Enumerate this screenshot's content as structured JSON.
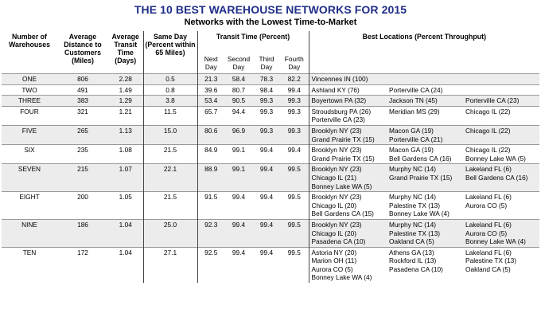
{
  "title": "THE 10 BEST WAREHOUSE NETWORKS FOR 2015",
  "subtitle": "Networks with the Lowest Time-to-Market",
  "headers": {
    "warehouses": "Number of Warehouses",
    "distance": "Average Distance to Customers (Miles)",
    "transit": "Average Transit Time (Days)",
    "sameday": "Same Day (Percent within 65 Miles)",
    "transit_pct": "Transit Time (Percent)",
    "best_locations": "Best Locations (Percent Throughput)",
    "next_day": "Next Day",
    "second_day": "Second Day",
    "third_day": "Third Day",
    "fourth_day": "Fourth Day"
  },
  "rows": [
    {
      "n": "ONE",
      "dist": "806",
      "transit": "2.28",
      "same": "0.5",
      "d1": "21.3",
      "d2": "58.4",
      "d3": "78.3",
      "d4": "82.2",
      "loc1": [
        "Vincennes IN (100)"
      ],
      "loc2": [],
      "loc3": []
    },
    {
      "n": "TWO",
      "dist": "491",
      "transit": "1.49",
      "same": "0.8",
      "d1": "39.6",
      "d2": "80.7",
      "d3": "98.4",
      "d4": "99.4",
      "loc1": [
        "Ashland KY (76)"
      ],
      "loc2": [
        "Porterville CA (24)"
      ],
      "loc3": []
    },
    {
      "n": "THREE",
      "dist": "383",
      "transit": "1.29",
      "same": "3.8",
      "d1": "53.4",
      "d2": "90.5",
      "d3": "99.3",
      "d4": "99.3",
      "loc1": [
        "Boyertown PA (32)"
      ],
      "loc2": [
        "Jackson TN (45)"
      ],
      "loc3": [
        "Porterville CA (23)"
      ]
    },
    {
      "n": "FOUR",
      "dist": "321",
      "transit": "1.21",
      "same": "11.5",
      "d1": "65.7",
      "d2": "94.4",
      "d3": "99.3",
      "d4": "99.3",
      "loc1": [
        "Stroudsburg PA (26)",
        "Porterville CA (23)"
      ],
      "loc2": [
        "Meridian MS (29)"
      ],
      "loc3": [
        "Chicago IL (22)"
      ]
    },
    {
      "n": "FIVE",
      "dist": "265",
      "transit": "1.13",
      "same": "15.0",
      "d1": "80.6",
      "d2": "96.9",
      "d3": "99.3",
      "d4": "99.3",
      "loc1": [
        "Brooklyn NY (23)",
        "Grand Prairie TX (15)"
      ],
      "loc2": [
        "Macon GA (19)",
        "Porterville CA (21)"
      ],
      "loc3": [
        "Chicago IL (22)"
      ]
    },
    {
      "n": "SIX",
      "dist": "235",
      "transit": "1.08",
      "same": "21.5",
      "d1": "84.9",
      "d2": "99.1",
      "d3": "99.4",
      "d4": "99.4",
      "loc1": [
        "Brooklyn NY (23)",
        "Grand Prairie TX (15)"
      ],
      "loc2": [
        "Macon GA (19)",
        "Bell Gardens CA (16)"
      ],
      "loc3": [
        "Chicago IL (22)",
        "Bonney Lake WA (5)"
      ]
    },
    {
      "n": "SEVEN",
      "dist": "215",
      "transit": "1.07",
      "same": "22.1",
      "d1": "88.9",
      "d2": "99.1",
      "d3": "99.4",
      "d4": "99.5",
      "loc1": [
        "Brooklyn NY (23)",
        "Chicago IL (21)",
        "Bonney Lake WA (5)"
      ],
      "loc2": [
        "Murphy NC (14)",
        "Grand Prairie TX (15)"
      ],
      "loc3": [
        "Lakeland FL (6)",
        "Bell Gardens CA (16)"
      ]
    },
    {
      "n": "EIGHT",
      "dist": "200",
      "transit": "1.05",
      "same": "21.5",
      "d1": "91.5",
      "d2": "99.4",
      "d3": "99.4",
      "d4": "99.5",
      "loc1": [
        "Brooklyn NY (23)",
        "Chicago IL (20)",
        "Bell Gardens CA (15)"
      ],
      "loc2": [
        "Murphy NC (14)",
        "Palestine TX (13)",
        "Bonney Lake WA (4)"
      ],
      "loc3": [
        "Lakeland FL (6)",
        "Aurora CO (5)"
      ]
    },
    {
      "n": "NINE",
      "dist": "186",
      "transit": "1.04",
      "same": "25.0",
      "d1": "92.3",
      "d2": "99.4",
      "d3": "99.4",
      "d4": "99.5",
      "loc1": [
        "Brooklyn NY (23)",
        "Chicago IL (20)",
        "Pasadena CA (10)"
      ],
      "loc2": [
        "Murphy NC (14)",
        "Palestine TX (13)",
        "Oakland CA (5)"
      ],
      "loc3": [
        "Lakeland FL (6)",
        "Aurora CO (5)",
        "Bonney Lake WA (4)"
      ]
    },
    {
      "n": "TEN",
      "dist": "172",
      "transit": "1.04",
      "same": "27.1",
      "d1": "92.5",
      "d2": "99.4",
      "d3": "99.4",
      "d4": "99.5",
      "loc1": [
        "Astoria NY (20)",
        "Marion OH (11)",
        "Aurora CO (5)",
        "Bonney Lake WA (4)"
      ],
      "loc2": [
        "Athens GA (13)",
        "Rockford IL (13)",
        "Pasadena CA (10)"
      ],
      "loc3": [
        "Lakeland FL (6)",
        "Palestine TX (13)",
        "Oakland CA (5)"
      ]
    }
  ]
}
